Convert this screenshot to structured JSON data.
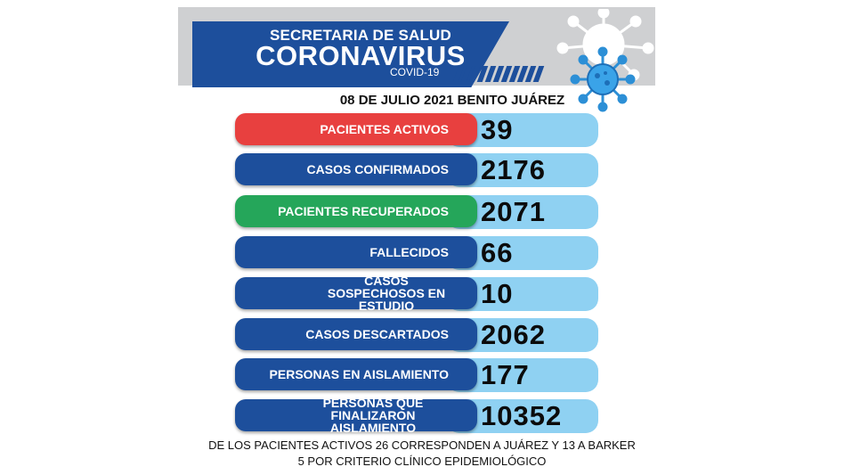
{
  "header": {
    "line1": "SECRETARIA DE SALUD",
    "line2": "CORONAVIRUS",
    "line3": "COVID-19",
    "date_location": "08 DE JULIO 2021 BENITO JUÁREZ",
    "virus_icon": "coronavirus-icon",
    "colors": {
      "blue": "#1d4f9c",
      "gray": "#cfd0d2",
      "light_blue": "#8fd1f2"
    }
  },
  "stats": [
    {
      "label": "PACIENTES ACTIVOS",
      "value": "39",
      "color": "#e8403f"
    },
    {
      "label": "CASOS CONFIRMADOS",
      "value": "2176",
      "color": "#1d4f9c"
    },
    {
      "label": "PACIENTES RECUPERADOS",
      "value": "2071",
      "color": "#25a65a"
    },
    {
      "label": "FALLECIDOS",
      "value": "66",
      "color": "#1d4f9c"
    },
    {
      "label": "CASOS SOSPECHOSOS EN ESTUDIO",
      "value": "10",
      "color": "#1d4f9c"
    },
    {
      "label": "CASOS DESCARTADOS",
      "value": "2062",
      "color": "#1d4f9c"
    },
    {
      "label": "PERSONAS EN AISLAMIENTO",
      "value": "177",
      "color": "#1d4f9c"
    },
    {
      "label": "PERSONAS QUE FINALIZARON AISLAMIENTO",
      "value": "10352",
      "color": "#1d4f9c"
    }
  ],
  "footer": {
    "line1": "DE LOS PACIENTES ACTIVOS  26 CORRESPONDEN A JUÁREZ Y 13 A BARKER",
    "line2": "5 POR CRITERIO CLÍNICO EPIDEMIOLÓGICO"
  }
}
